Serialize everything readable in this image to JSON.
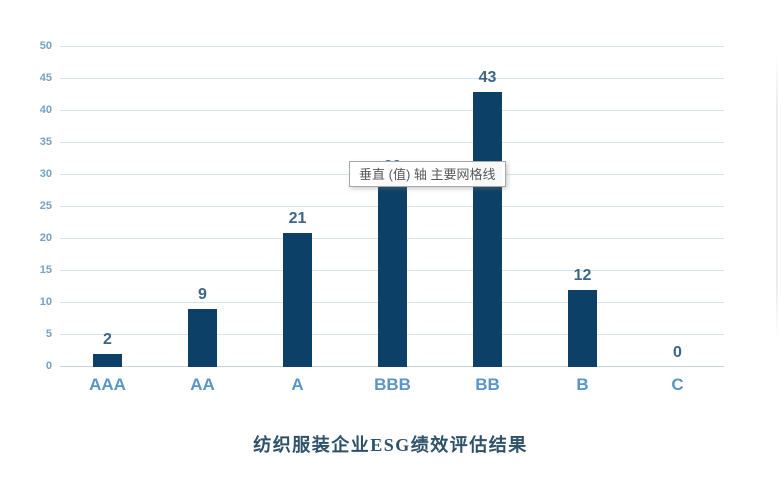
{
  "chart_data": {
    "type": "bar",
    "categories": [
      "AAA",
      "AA",
      "A",
      "BBB",
      "BB",
      "B",
      "C"
    ],
    "values": [
      2,
      9,
      21,
      29,
      43,
      12,
      0
    ],
    "title": "纺织服装企业ESG绩效评估结果",
    "xlabel": "",
    "ylabel": "",
    "ylim": [
      0,
      50
    ],
    "ytick_step": 5,
    "yticks": [
      0,
      5,
      10,
      15,
      20,
      25,
      30,
      35,
      40,
      45,
      50
    ],
    "grid": true,
    "legend": "none",
    "title_position": "bottom",
    "colors": {
      "bar": "#0d4067",
      "value_label": "#3c6588",
      "category_label": "#5a95c8",
      "axis_tick_label": "#74a2c6",
      "gridline": "#d8e5ec",
      "baseline": "#c7d4dd",
      "title": "#2e5269"
    }
  },
  "tooltip": {
    "text": "垂直 (值) 轴 主要网格线"
  }
}
